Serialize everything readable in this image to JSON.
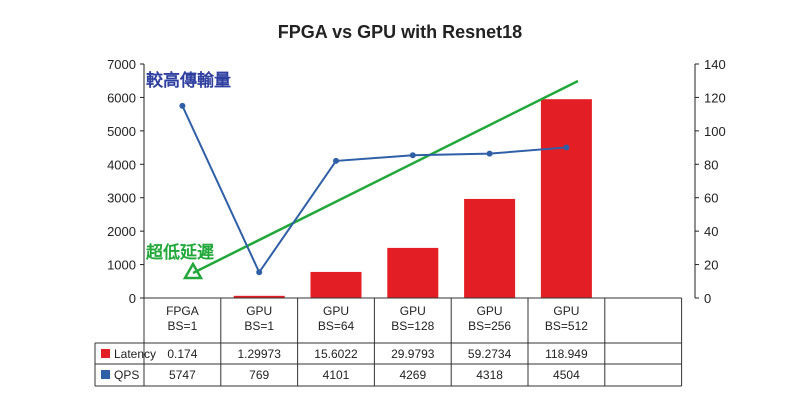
{
  "chart_data": {
    "type": "bar",
    "title": "FPGA vs GPU with Resnet18",
    "categories": [
      [
        "FPGA",
        "BS=1"
      ],
      [
        "GPU",
        "BS=1"
      ],
      [
        "GPU",
        "BS=64"
      ],
      [
        "GPU",
        "BS=128"
      ],
      [
        "GPU",
        "BS=256"
      ],
      [
        "GPU",
        "BS=512"
      ]
    ],
    "series": [
      {
        "name": "Latency",
        "kind": "bar",
        "axis": "right",
        "color": "#e31e24",
        "values": [
          0.174,
          1.29973,
          15.6022,
          29.9793,
          59.2734,
          118.949
        ],
        "labels": [
          "0.174",
          "1.29973",
          "15.6022",
          "29.9793",
          "59.2734",
          "118.949"
        ]
      },
      {
        "name": "QPS",
        "kind": "line",
        "axis": "left",
        "color": "#2f5fa7",
        "values": [
          5747,
          769,
          4101,
          4269,
          4318,
          4504
        ],
        "labels": [
          "5747",
          "769",
          "4101",
          "4269",
          "4318",
          "4504"
        ]
      }
    ],
    "left_axis": {
      "ylim": [
        0,
        7000
      ],
      "ticks": [
        0,
        1000,
        2000,
        3000,
        4000,
        5000,
        6000,
        7000
      ]
    },
    "right_axis": {
      "ylim": [
        0,
        140
      ],
      "ticks": [
        0,
        20,
        40,
        60,
        80,
        100,
        120,
        140
      ]
    },
    "annotations": [
      {
        "text": "較高傳輸量",
        "color": "#2f3fa0"
      },
      {
        "text": "超低延遲",
        "color": "#22a83a"
      }
    ],
    "trend_arrow_color": "#22a83a",
    "grid": false,
    "legend": "data-table"
  }
}
